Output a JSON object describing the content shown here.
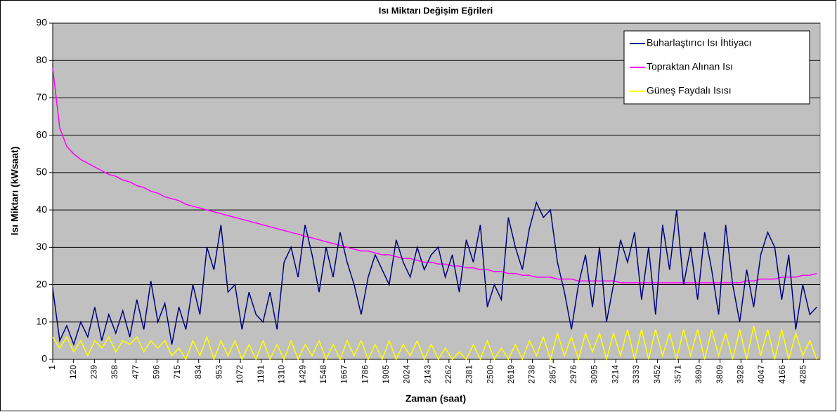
{
  "chart_data": {
    "type": "line",
    "title": "Isı Miktarı Değişim Eğrileri",
    "xlabel": "Zaman (saat)",
    "ylabel": "Isı Miktarı (kWsaat)",
    "x": [
      1,
      41,
      81,
      121,
      161,
      201,
      241,
      281,
      321,
      361,
      401,
      441,
      481,
      521,
      561,
      601,
      641,
      681,
      721,
      761,
      801,
      841,
      881,
      921,
      961,
      1001,
      1041,
      1081,
      1121,
      1161,
      1201,
      1241,
      1281,
      1321,
      1361,
      1401,
      1441,
      1481,
      1521,
      1561,
      1601,
      1641,
      1681,
      1721,
      1761,
      1801,
      1841,
      1881,
      1921,
      1961,
      2001,
      2041,
      2081,
      2121,
      2161,
      2201,
      2241,
      2281,
      2321,
      2361,
      2401,
      2441,
      2481,
      2521,
      2561,
      2601,
      2641,
      2681,
      2721,
      2761,
      2801,
      2841,
      2881,
      2921,
      2961,
      3001,
      3041,
      3081,
      3121,
      3161,
      3201,
      3241,
      3281,
      3321,
      3361,
      3401,
      3441,
      3481,
      3521,
      3561,
      3601,
      3641,
      3681,
      3721,
      3761,
      3801,
      3841,
      3881,
      3921,
      3961,
      4001,
      4041,
      4081,
      4121,
      4161,
      4201,
      4241,
      4281,
      4321,
      4361
    ],
    "series": [
      {
        "name": "Buharlaştırıcı Isı İhtiyacı",
        "color": "#000080",
        "values": [
          19,
          5,
          9,
          4,
          10,
          6,
          14,
          5,
          12,
          7,
          13,
          6,
          16,
          8,
          21,
          10,
          15,
          4,
          14,
          8,
          20,
          12,
          30,
          24,
          36,
          18,
          20,
          8,
          18,
          12,
          10,
          18,
          8,
          26,
          30,
          22,
          36,
          28,
          18,
          30,
          22,
          34,
          26,
          20,
          12,
          22,
          28,
          24,
          20,
          32,
          26,
          22,
          30,
          24,
          28,
          30,
          22,
          28,
          18,
          32,
          26,
          36,
          14,
          20,
          16,
          38,
          30,
          24,
          35,
          42,
          38,
          40,
          26,
          18,
          8,
          20,
          28,
          14,
          30,
          10,
          20,
          32,
          26,
          34,
          16,
          30,
          12,
          36,
          24,
          40,
          20,
          30,
          16,
          34,
          24,
          12,
          36,
          20,
          10,
          24,
          14,
          28,
          34,
          30,
          16,
          28,
          8,
          20,
          12,
          14
        ]
      },
      {
        "name": "Topraktan Alınan Isı",
        "color": "#ff00ff",
        "values": [
          78,
          62,
          57,
          55,
          53.5,
          52.5,
          51.5,
          50.5,
          49.5,
          49,
          48,
          47.5,
          46.5,
          46,
          45,
          44.5,
          43.5,
          43,
          42.5,
          41.5,
          41,
          40.5,
          40,
          39.5,
          39,
          38.5,
          38,
          37.5,
          37,
          36.5,
          36,
          35.5,
          35,
          34.5,
          34,
          33.5,
          33,
          32.5,
          32,
          31.5,
          31,
          30.5,
          30,
          29.5,
          29,
          29,
          28.5,
          28,
          28,
          27.5,
          27,
          27,
          26.5,
          26,
          26,
          25.5,
          25.5,
          25,
          25,
          24.5,
          24.5,
          24,
          24,
          23.5,
          23.5,
          23,
          23,
          22.5,
          22.5,
          22,
          22,
          22,
          21.5,
          21.5,
          21.5,
          21,
          21,
          21,
          21,
          21,
          21,
          20.5,
          20.5,
          20.5,
          20.5,
          20.5,
          20.5,
          20.5,
          20.5,
          20.5,
          20.5,
          20.5,
          20.5,
          20.5,
          20.5,
          20.5,
          20.5,
          20.5,
          20.5,
          21,
          21,
          21.5,
          21.5,
          21.5,
          22,
          22,
          22,
          22.5,
          22.5,
          23
        ]
      },
      {
        "name": "Güneş Faydalı Isısı",
        "color": "#ffff00",
        "values": [
          6,
          3,
          6,
          2,
          5,
          1,
          5,
          3,
          6,
          2,
          5,
          4,
          6,
          2,
          5,
          3,
          5,
          1,
          3,
          0,
          5,
          1,
          6,
          0,
          5,
          1,
          5,
          0,
          4,
          0,
          5,
          0,
          4,
          0,
          5,
          0,
          4,
          1,
          5,
          0,
          4,
          0,
          5,
          1,
          5,
          0,
          4,
          0,
          5,
          0,
          4,
          1,
          5,
          0,
          4,
          0,
          3,
          0,
          2,
          0,
          4,
          0,
          5,
          0,
          3,
          0,
          4,
          0,
          5,
          1,
          6,
          0,
          7,
          1,
          6,
          0,
          7,
          2,
          7,
          0,
          7,
          1,
          8,
          0,
          8,
          0,
          8,
          1,
          7,
          0,
          8,
          1,
          8,
          0,
          8,
          1,
          7,
          0,
          8,
          0,
          9,
          1,
          8,
          0,
          8,
          0,
          7,
          1,
          5,
          0
        ]
      }
    ],
    "xlim": [
      1,
      4380
    ],
    "xticks": [
      1,
      120,
      239,
      358,
      477,
      596,
      715,
      834,
      953,
      1072,
      1191,
      1310,
      1429,
      1548,
      1667,
      1786,
      1905,
      2024,
      2143,
      2262,
      2381,
      2500,
      2619,
      2738,
      2857,
      2976,
      3095,
      3214,
      3333,
      3452,
      3571,
      3690,
      3809,
      3928,
      4047,
      4166,
      4285
    ],
    "ylim": [
      0,
      90
    ],
    "yticks": [
      0,
      10,
      20,
      30,
      40,
      50,
      60,
      70,
      80,
      90
    ],
    "grid": true,
    "legend": "upper right",
    "background": "#c0c0c0"
  }
}
